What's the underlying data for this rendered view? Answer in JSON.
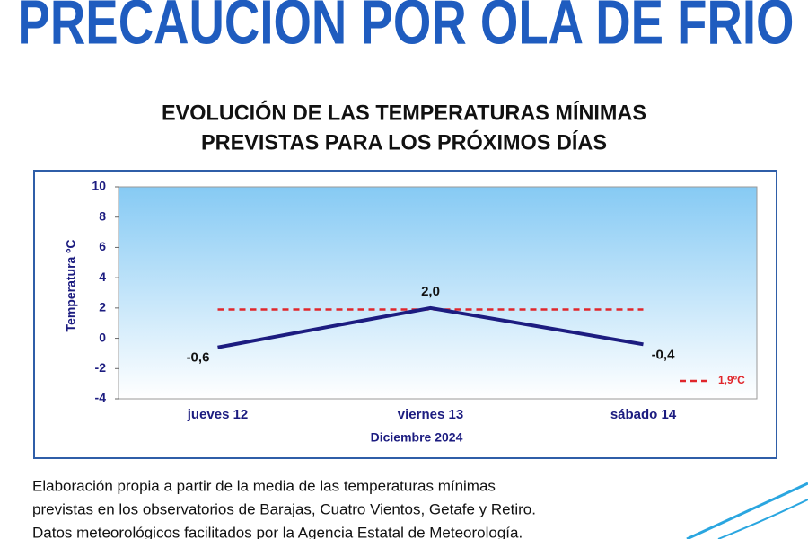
{
  "header": {
    "title": "PRECAUCIÓN POR OLA DE FRÍO"
  },
  "chart_data": {
    "type": "line",
    "title": [
      "EVOLUCIÓN DE LAS TEMPERATURAS MÍNIMAS",
      "PREVISTAS PARA LOS PRÓXIMOS DÍAS"
    ],
    "x_label": "Diciembre  2024",
    "y_label": "Temperatura ºC",
    "categories": [
      "jueves 12",
      "viernes 13",
      "sábado 14"
    ],
    "series": [
      {
        "color": "#1c1c80",
        "values": [
          -0.6,
          2.0,
          -0.4
        ],
        "value_labels": [
          "-0,6",
          "2,0",
          "-0,4"
        ]
      }
    ],
    "reference_line": {
      "value": 1.9,
      "label": "1,9ºC",
      "color": "#e0262b"
    },
    "ylim": [
      -4,
      10
    ],
    "yticks": [
      -4,
      -2,
      0,
      2,
      4,
      6,
      8,
      10
    ]
  },
  "footnote": [
    "Elaboración propia a partir de la media de las temperaturas mínimas",
    "previstas en los observatorios de Barajas, Cuatro Vientos, Getafe y Retiro.",
    "Datos meteorológicos facilitados por la Agencia Estatal de Meteorología."
  ]
}
